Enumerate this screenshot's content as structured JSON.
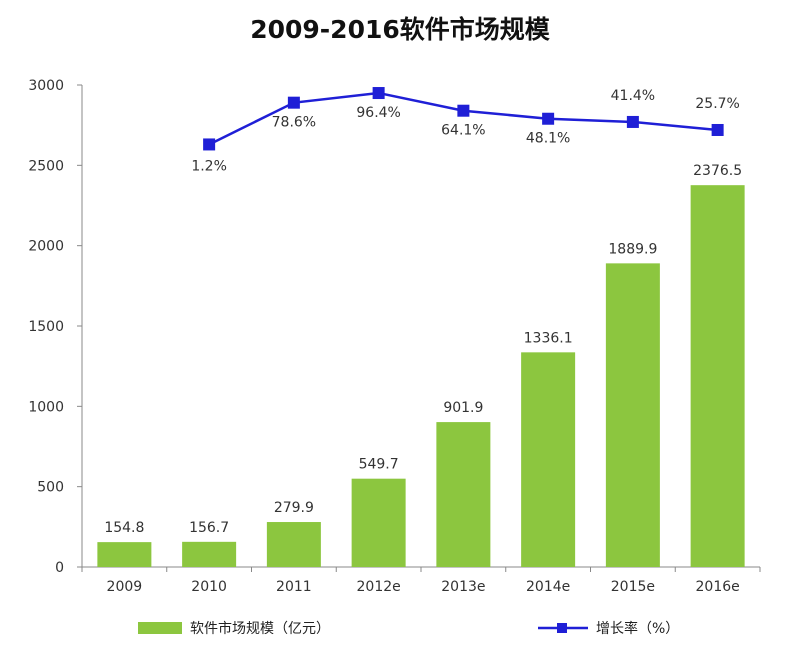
{
  "chart_data": {
    "type": "bar",
    "title": "2009-2016软件市场规模",
    "categories": [
      "2009",
      "2010",
      "2011",
      "2012e",
      "2013e",
      "2014e",
      "2015e",
      "2016e"
    ],
    "ylim": [
      0,
      3000
    ],
    "yticks": [
      0,
      500,
      1000,
      1500,
      2000,
      2500,
      3000
    ],
    "grid": false,
    "legend_position": "bottom",
    "series": [
      {
        "name": "软件市场规模（亿元）",
        "type": "bar",
        "color": "#8cc63f",
        "values": [
          154.8,
          156.7,
          279.9,
          549.7,
          901.9,
          1336.1,
          1889.9,
          2376.5
        ],
        "labels": [
          "154.8",
          "156.7",
          "279.9",
          "549.7",
          "901.9",
          "1336.1",
          "1889.9",
          "2376.5"
        ]
      },
      {
        "name": "增长率（%）",
        "type": "line",
        "color": "#1f1fd6",
        "values": [
          null,
          1.2,
          78.6,
          96.4,
          64.1,
          48.1,
          41.4,
          25.7
        ],
        "labels": [
          "",
          "1.2%",
          "78.6%",
          "96.4%",
          "64.1%",
          "48.1%",
          "41.4%",
          "25.7%"
        ],
        "plotted_y": [
          null,
          2630,
          2890,
          2950,
          2840,
          2790,
          2770,
          2720
        ]
      }
    ]
  }
}
